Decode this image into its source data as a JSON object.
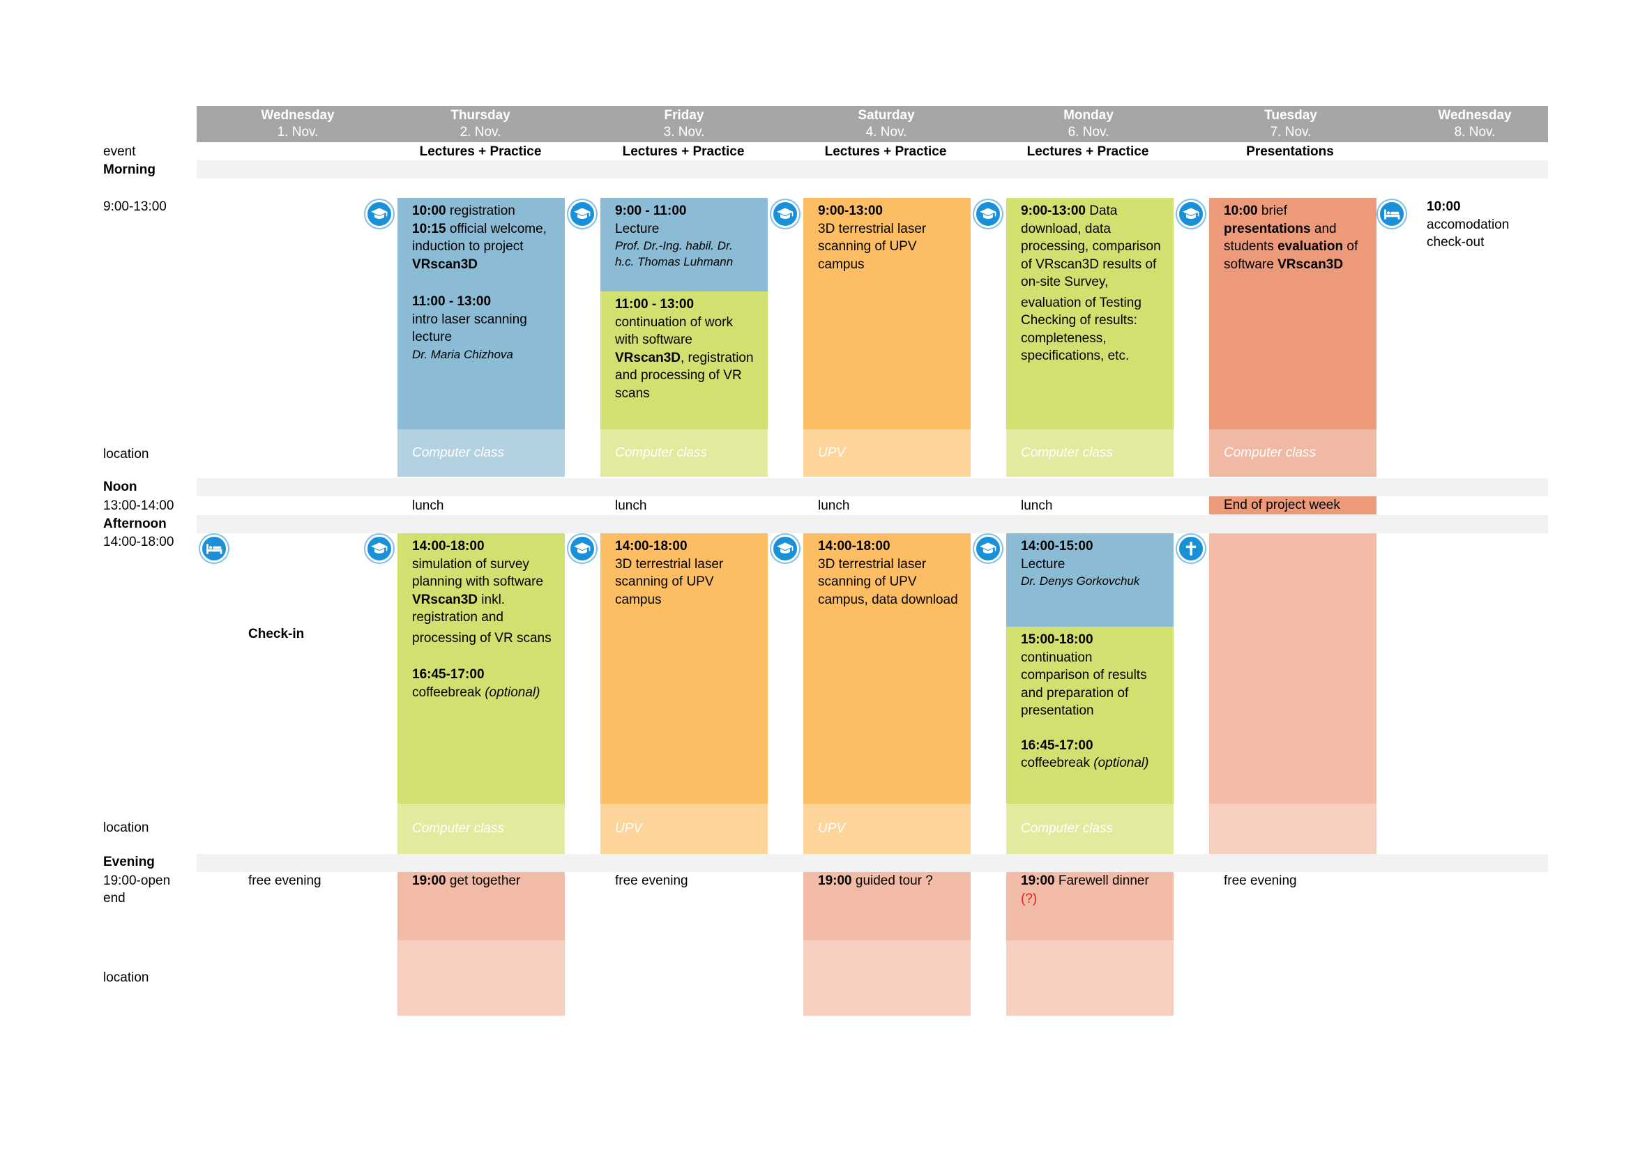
{
  "row_labels": {
    "event": "event",
    "morning": "Morning",
    "morning_time": "9:00-13:00",
    "location1": "location",
    "noon": "Noon",
    "noon_time": "13:00-14:00",
    "afternoon": "Afternoon",
    "afternoon_time": "14:00-18:00",
    "location2": "location",
    "evening": "Evening",
    "evening_time_1": "19:00-open",
    "evening_time_2": "end",
    "location3": "location"
  },
  "days": [
    {
      "name": "Wednesday",
      "date": "1. Nov."
    },
    {
      "name": "Thursday",
      "date": "2. Nov."
    },
    {
      "name": "Friday",
      "date": "3. Nov."
    },
    {
      "name": "Saturday",
      "date": "4. Nov."
    },
    {
      "name": "Monday",
      "date": "6. Nov."
    },
    {
      "name": "Tuesday",
      "date": "7. Nov."
    },
    {
      "name": "Wednesday",
      "date": "8. Nov."
    }
  ],
  "events": {
    "thu": "Lectures + Practice",
    "fri": "Lectures + Practice",
    "sat": "Lectures + Practice",
    "mon": "Lectures + Practice",
    "tue": "Presentations"
  },
  "morning": {
    "thu": {
      "t1": "10:00",
      "t1_text": " registration",
      "t2": "10:15",
      "t2_text": " official welcome,",
      "l3": "induction to project",
      "l4": "VRscan3D",
      "t5": "11:00 - 13:00",
      "l6": "intro laser scanning",
      "l7": "lecture",
      "lecturer": "Dr. Maria Chizhova"
    },
    "fri": {
      "t1": "9:00 - 11:00",
      "l2": "Lecture",
      "lecturer1": "Prof. Dr.-Ing. habil. Dr.",
      "lecturer2": "h.c. Thomas Luhmann",
      "t3": "11:00 - 13:00",
      "l4": "continuation of work",
      "l5": "with software",
      "l6b": "VRscan3D",
      "l6": ", registration",
      "l7": "and processing of VR",
      "l8": "scans"
    },
    "sat": {
      "t1": "9:00-13:00",
      "l2": "3D terrestrial laser",
      "l3": "scanning of UPV",
      "l4": "campus"
    },
    "mon": {
      "t1": "9:00-13:00",
      "t1_text": " Data",
      "l2": "download, data",
      "l3": "processing, comparison",
      "l4": "of VRscan3D results of",
      "l5": "on-site Survey,",
      "l6": "evaluation of Testing",
      "l7": "Checking of results:",
      "l8": "completeness,",
      "l9": "specifications, etc."
    },
    "tue": {
      "t1": "10:00",
      "t1_text": " brief",
      "l2b": "presentations",
      "l2": " and",
      "l3a": "students ",
      "l3b": "evaluation",
      "l3c": " of",
      "l4a": "software ",
      "l4b": "VRscan3D"
    },
    "wed8": {
      "t1": "10:00",
      "l2": "accomodation",
      "l3": "check-out"
    }
  },
  "locations_morning": {
    "thu": "Computer class",
    "fri": "Computer class",
    "sat": "UPV",
    "mon": "Computer class",
    "tue": "Computer class"
  },
  "noon": {
    "thu": "lunch",
    "fri": "lunch",
    "sat": "lunch",
    "mon": "lunch",
    "tue": "End of project week"
  },
  "afternoon": {
    "wed1": "Check-in",
    "thu": {
      "t1": "14:00-18:00",
      "l2": "simulation of survey",
      "l3": "planning with software",
      "l4b": "VRscan3D",
      "l4": " inkl.",
      "l5": "registration and",
      "l6": "processing of VR scans",
      "t7": "16:45-17:00",
      "l8": "coffeebreak ",
      "l8i": "(optional)"
    },
    "fri": {
      "t1": "14:00-18:00",
      "l2": "3D terrestrial laser",
      "l3": "scanning of UPV",
      "l4": "campus"
    },
    "sat": {
      "t1": "14:00-18:00",
      "l2": "3D terrestrial laser",
      "l3": "scanning of UPV",
      "l4": "campus, data download"
    },
    "mon": {
      "t1": "14:00-15:00",
      "l2": "Lecture",
      "lecturer": "Dr. Denys Gorkovchuk",
      "t3": "15:00-18:00",
      "l4": "continuation",
      "l5": "comparison of results",
      "l6": "and preparation of",
      "l7": "presentation",
      "t8": "16:45-17:00",
      "l9": "coffeebreak ",
      "l9i": "(optional)"
    }
  },
  "locations_afternoon": {
    "thu": "Computer class",
    "fri": "UPV",
    "sat": "UPV",
    "mon": "Computer class"
  },
  "evening": {
    "wed1": "free evening",
    "thu_t": "19:00",
    "thu": " get together",
    "fri": "free evening",
    "sat_t": "19:00",
    "sat": " guided tour ?",
    "mon_t": "19:00",
    "mon": " Farewell dinner",
    "mon_note": "(?)",
    "tue": "free evening"
  },
  "icons": {
    "lecture": "graduation-cap-icon",
    "hotel": "bed-icon",
    "farewell": "cross-icon"
  },
  "colors": {
    "header": "#a6a6a6",
    "blue": "#8cbbd6",
    "green": "#d2e070",
    "orange": "#fdbd63",
    "salmon": "#ec9a7a",
    "icon": "#1a90d8"
  }
}
